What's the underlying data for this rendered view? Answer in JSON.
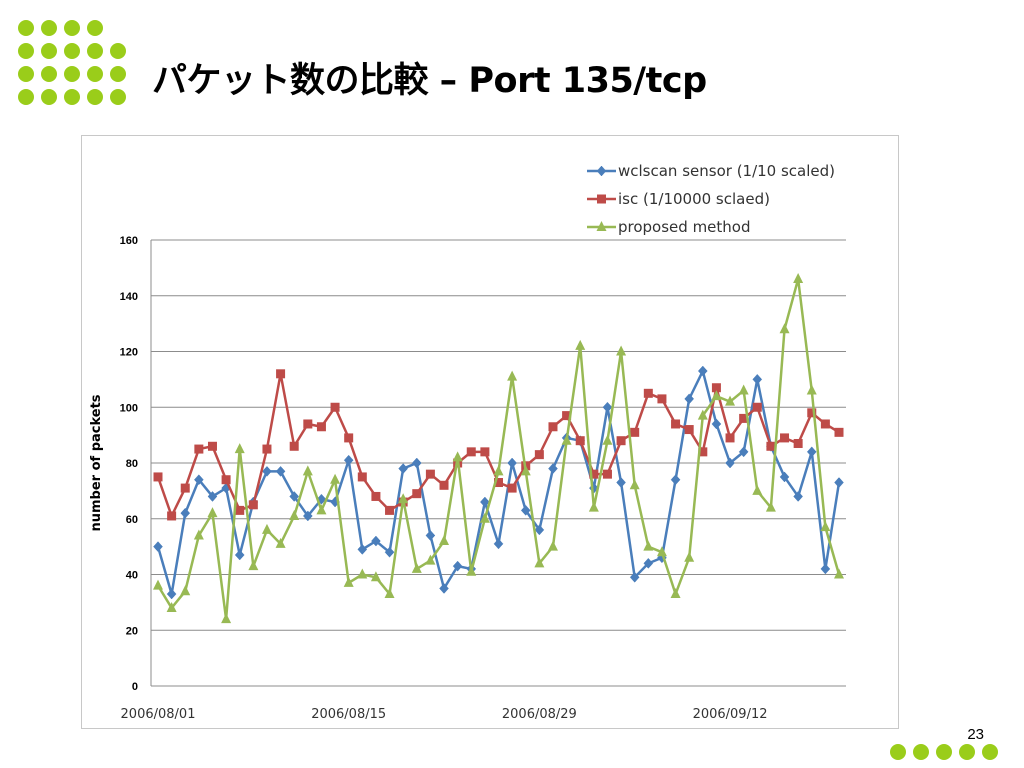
{
  "slide": {
    "title": "パケット数の比較 – Port 135/tcp",
    "page_number": "23",
    "accent_color": "#9ACD1A"
  },
  "chart_data": {
    "type": "line",
    "title": "",
    "xlabel": "",
    "ylabel": "number of packets",
    "ylim": [
      0,
      160
    ],
    "yticks": [
      0,
      20,
      40,
      60,
      80,
      100,
      120,
      140,
      160
    ],
    "grid": true,
    "legend_position": "top-right",
    "x_tick_labels": [
      {
        "index": 0,
        "label": "2006/08/01"
      },
      {
        "index": 14,
        "label": "2006/08/15"
      },
      {
        "index": 28,
        "label": "2006/08/29"
      },
      {
        "index": 42,
        "label": "2006/09/12"
      }
    ],
    "series": [
      {
        "name": "wclscan sensor (1/10 scaled)",
        "color": "#4A7EBB",
        "marker": "diamond",
        "values": [
          50,
          33,
          62,
          74,
          68,
          71,
          47,
          66,
          77,
          77,
          68,
          61,
          67,
          66,
          81,
          49,
          52,
          48,
          78,
          80,
          54,
          35,
          43,
          42,
          66,
          51,
          80,
          63,
          56,
          78,
          89,
          88,
          71,
          100,
          73,
          39,
          44,
          46,
          74,
          103,
          113,
          94,
          80,
          84,
          110,
          86,
          75,
          68,
          84,
          42,
          73
        ]
      },
      {
        "name": "isc (1/10000 sclaed)",
        "color": "#BE4B48",
        "marker": "square",
        "values": [
          75,
          61,
          71,
          85,
          86,
          74,
          63,
          65,
          85,
          112,
          86,
          94,
          93,
          100,
          89,
          75,
          68,
          63,
          66,
          69,
          76,
          72,
          80,
          84,
          84,
          73,
          71,
          79,
          83,
          93,
          97,
          88,
          76,
          76,
          88,
          91,
          105,
          103,
          94,
          92,
          84,
          107,
          89,
          96,
          100,
          86,
          89,
          87,
          98,
          94,
          91
        ]
      },
      {
        "name": "proposed method",
        "color": "#98B954",
        "marker": "triangle",
        "values": [
          36,
          28,
          34,
          54,
          62,
          24,
          85,
          43,
          56,
          51,
          61,
          77,
          63,
          74,
          37,
          40,
          39,
          33,
          67,
          42,
          45,
          52,
          82,
          41,
          60,
          77,
          111,
          77,
          44,
          50,
          88,
          122,
          64,
          88,
          120,
          72,
          50,
          48,
          33,
          46,
          97,
          104,
          102,
          106,
          70,
          64,
          128,
          146,
          106,
          57,
          40
        ]
      }
    ]
  }
}
